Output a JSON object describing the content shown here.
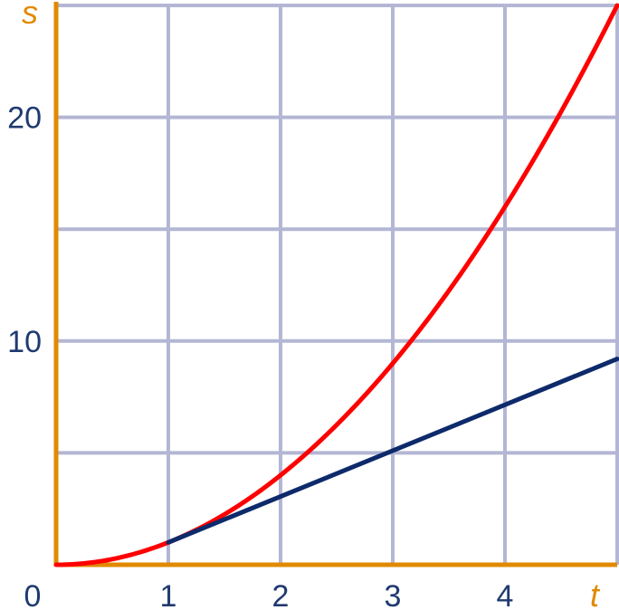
{
  "chart_data": {
    "type": "line",
    "title": "",
    "xlabel": "t",
    "ylabel": "s",
    "xlim": [
      0,
      5
    ],
    "ylim": [
      0,
      25
    ],
    "grid": true,
    "x_grid_step": 1,
    "y_grid_step": 5,
    "x_ticks": [
      {
        "value": 0,
        "label": "0"
      },
      {
        "value": 1,
        "label": "1"
      },
      {
        "value": 2,
        "label": "2"
      },
      {
        "value": 3,
        "label": "3"
      },
      {
        "value": 4,
        "label": "4"
      }
    ],
    "y_ticks": [
      {
        "value": 10,
        "label": "10"
      },
      {
        "value": 20,
        "label": "20"
      }
    ],
    "series": [
      {
        "color": "#ff0000",
        "x": [
          0,
          0.5,
          1,
          1.5,
          2,
          2.5,
          3,
          3.5,
          4,
          4.5,
          5
        ],
        "values": [
          0,
          0.25,
          1,
          2.25,
          4,
          6.25,
          9,
          12.25,
          16,
          20.25,
          25
        ]
      },
      {
        "color": "#0d2a6b",
        "x": [
          1,
          5
        ],
        "values": [
          1,
          9.2
        ]
      }
    ],
    "colors": {
      "axis": "#e08a00",
      "grid": "#b3b6d4"
    }
  }
}
